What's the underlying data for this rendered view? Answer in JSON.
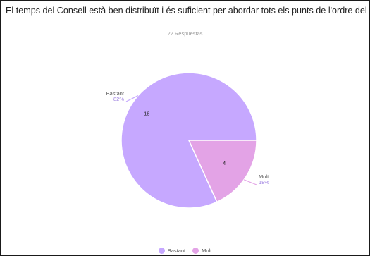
{
  "header": {
    "title": "El temps del Consell està ben distribuït i és suficient per abordar tots els punts de l'ordre del dia?",
    "responses": "22 Respuestas"
  },
  "chart_data": {
    "type": "pie",
    "title": "El temps del Consell està ben distribuït i és suficient per abordar tots els punts de l'ordre del dia?",
    "subtitle": "22 Respuestas",
    "categories": [
      "Bastant",
      "Molt"
    ],
    "values": [
      18,
      4
    ],
    "percent_labels": [
      "82%",
      "18%"
    ],
    "colors": [
      "#c6a8ff",
      "#e3a3e6"
    ],
    "legend": "bottom"
  }
}
